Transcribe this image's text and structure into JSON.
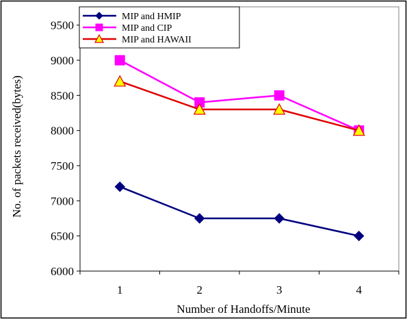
{
  "chart_data": {
    "type": "line",
    "title": "",
    "xlabel": "Number of Handoffs/Minute",
    "ylabel": "No. of packets received(bytes)",
    "categories": [
      "1",
      "2",
      "3",
      "4"
    ],
    "ylim": [
      6000,
      9500
    ],
    "yticks": [
      "6000",
      "6500",
      "7000",
      "7500",
      "8000",
      "8500",
      "9000",
      "9500"
    ],
    "grid": false,
    "legend_position": "top-left",
    "series": [
      {
        "name": "MIP and HMIP",
        "values": [
          7200,
          6750,
          6750,
          6500
        ],
        "color": "#00007f",
        "marker": "diamond"
      },
      {
        "name": "MIP and CIP",
        "values": [
          9000,
          8400,
          8500,
          8000
        ],
        "color": "#ff00ff",
        "marker": "square"
      },
      {
        "name": "MIP  and HAWAII",
        "values": [
          8700,
          8300,
          8300,
          8000
        ],
        "color": "#e00000",
        "marker": "triangle",
        "marker_fill": "#ffff00"
      }
    ]
  }
}
